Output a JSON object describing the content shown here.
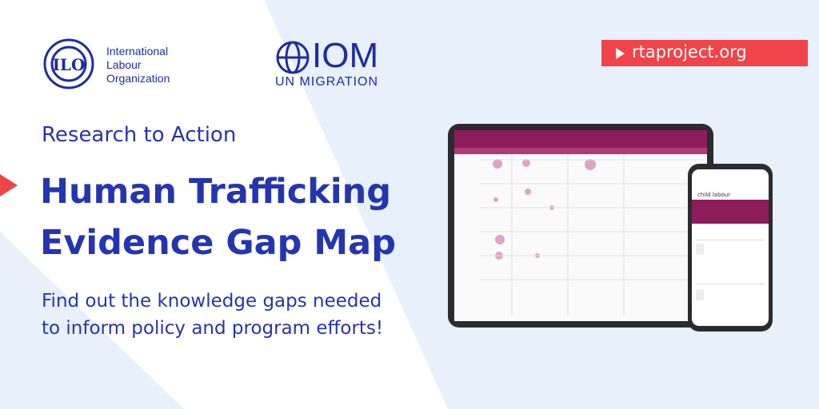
{
  "logos": {
    "ilo": [
      "International",
      "Labour",
      "Organization"
    ],
    "iom": "IOM",
    "iom_sub": "UN MIGRATION"
  },
  "link": "rtaproject.org",
  "kicker": "Research to Action",
  "title": [
    "Human Trafficking",
    "Evidence Gap Map"
  ],
  "body": [
    "Find out the knowledge gaps needed",
    "to inform policy and program efforts!"
  ],
  "phone": {
    "search": "child labour"
  }
}
